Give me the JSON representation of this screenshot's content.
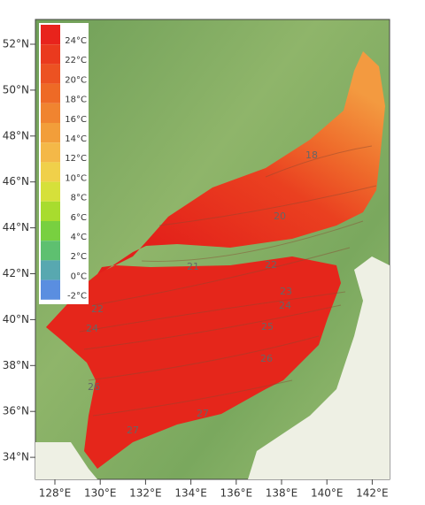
{
  "map": {
    "lat_labels": [
      "52°N",
      "50°N",
      "48°N",
      "46°N",
      "44°N",
      "42°N",
      "40°N",
      "38°N",
      "36°N",
      "34°N"
    ],
    "lon_labels": [
      "128°E",
      "130°E",
      "132°E",
      "134°E",
      "136°E",
      "138°E",
      "140°E",
      "142°E"
    ],
    "legend": {
      "labels": [
        "24°C",
        "22°C",
        "20°C",
        "18°C",
        "16°C",
        "14°C",
        "12°C",
        "10°C",
        "8°C",
        "6°C",
        "4°C",
        "2°C",
        "0°C",
        "-2°C"
      ],
      "colors": [
        "#e8231c",
        "#ea3a1e",
        "#ec5222",
        "#ee6a26",
        "#f08430",
        "#f29e3a",
        "#f4b848",
        "#f0d04a",
        "#d6e03a",
        "#a8dc2e",
        "#78d040",
        "#5ec070",
        "#58a8b0",
        "#5a8ee0"
      ]
    },
    "contour_labels": [
      "18",
      "20",
      "21",
      "22",
      "23",
      "24",
      "22",
      "24",
      "25",
      "26",
      "26",
      "27",
      "27"
    ]
  }
}
